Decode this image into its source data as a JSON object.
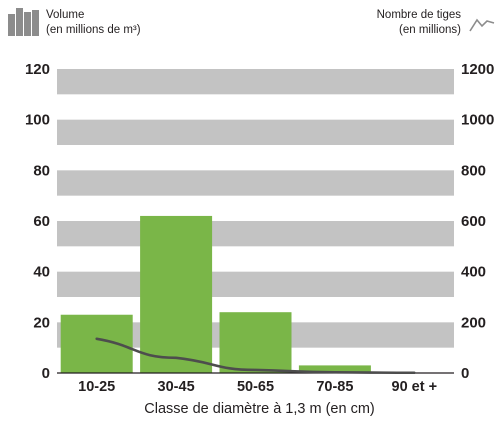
{
  "legend": {
    "left_line1": "Volume",
    "left_line2": "(en millions de m³)",
    "right_line1": "Nombre de tiges",
    "right_line2": "(en millions)"
  },
  "chart_data": {
    "type": "bar",
    "categories": [
      "10-25",
      "30-45",
      "50-65",
      "70-85",
      "90 et +"
    ],
    "series": [
      {
        "type": "bar",
        "axis": "left",
        "values": [
          23,
          62,
          24,
          3,
          0
        ],
        "color": "#7ab648"
      },
      {
        "type": "line",
        "axis": "right",
        "values": [
          135,
          60,
          12,
          3,
          1
        ],
        "color": "#4d4d4d"
      }
    ],
    "xlabel": "Classe de diamètre à 1,3 m (en cm)",
    "ylabel_left": "",
    "ylabel_right": "",
    "ylim_left": [
      0,
      120
    ],
    "ylim_right": [
      0,
      1200
    ],
    "yticks_left": [
      0,
      20,
      40,
      60,
      80,
      100,
      120
    ],
    "yticks_right": [
      0,
      200,
      400,
      600,
      800,
      1000,
      1200
    ],
    "grid": "alternating horizontal bands",
    "band_color": "#c3c3c3",
    "legend_position": "top"
  }
}
